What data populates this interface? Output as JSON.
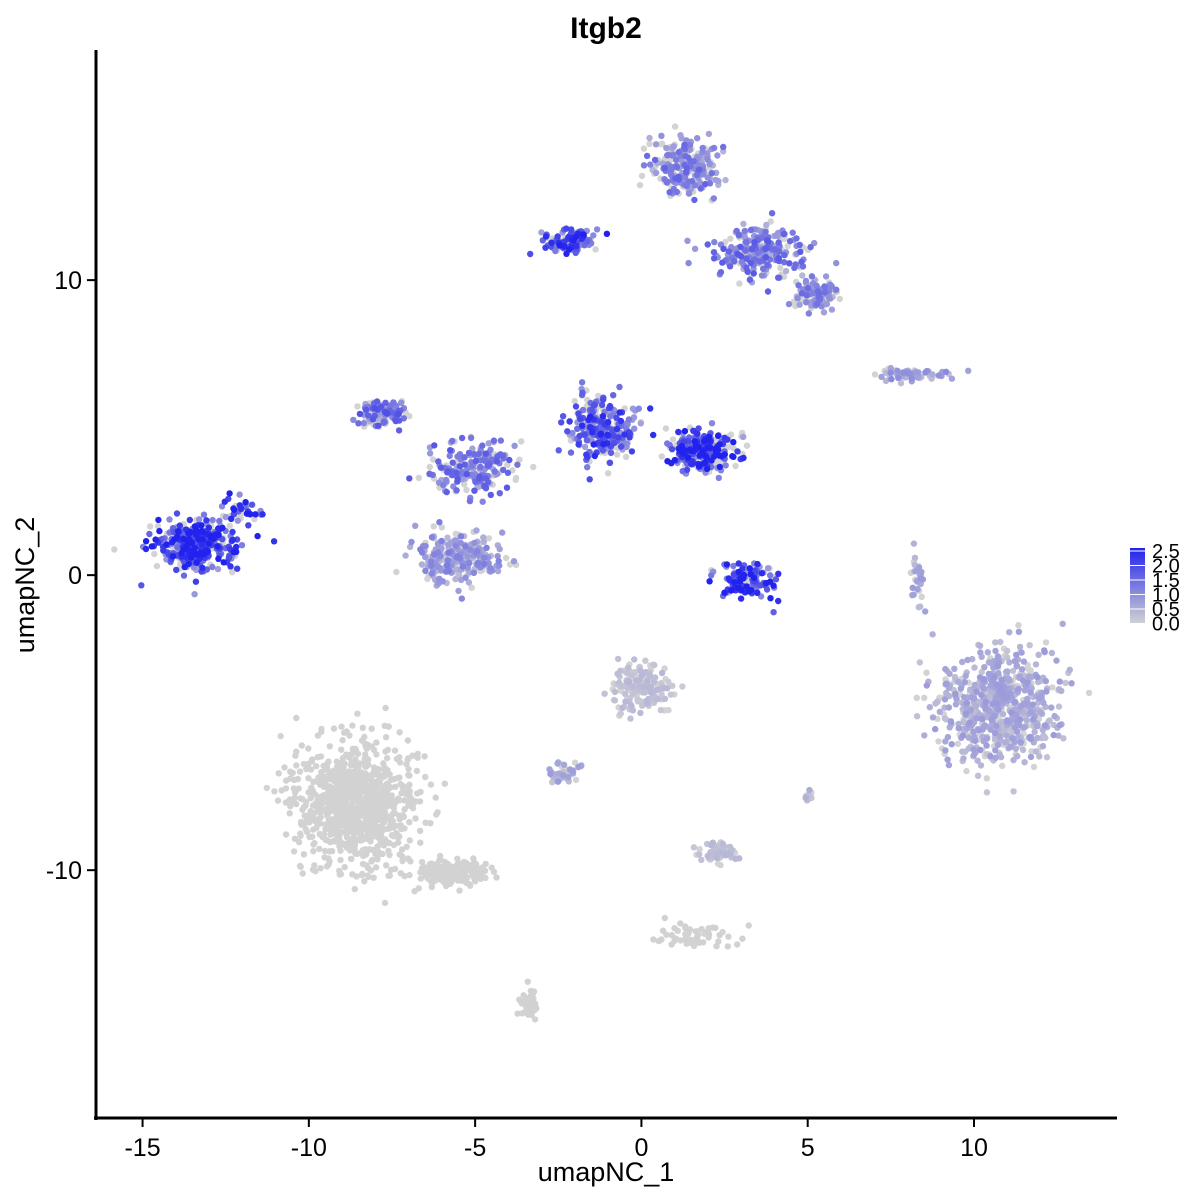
{
  "chart_data": {
    "type": "scatter",
    "title": "Itgb2",
    "xlabel": "umapNC_1",
    "ylabel": "umapNC_2",
    "xlim": [
      -16.4,
      14.3
    ],
    "ylim": [
      -18.4,
      17.8
    ],
    "xticks": [
      -15,
      -10,
      -5,
      0,
      5,
      10
    ],
    "yticks": [
      -10,
      0,
      10
    ],
    "grid": false,
    "colorscale": {
      "low_color": "#d3d3d3",
      "high_color": "#2222ee",
      "min": 0,
      "max": 2.5,
      "ticks": [
        "2.5",
        "2.0",
        "1.5",
        "1.0",
        "0.5",
        "0.0"
      ],
      "legend_placement": "right"
    },
    "clusters": [
      {
        "center": [
          -13.4,
          1.0
        ],
        "spread": [
          1.1,
          0.7
        ],
        "n": 420,
        "expr": 2.1
      },
      {
        "center": [
          -12.0,
          2.2
        ],
        "spread": [
          0.5,
          0.4
        ],
        "n": 40,
        "expr": 2.0
      },
      {
        "center": [
          -7.8,
          5.5
        ],
        "spread": [
          0.6,
          0.4
        ],
        "n": 120,
        "expr": 1.4
      },
      {
        "center": [
          -5.6,
          0.6
        ],
        "spread": [
          1.1,
          0.8
        ],
        "n": 260,
        "expr": 0.9
      },
      {
        "center": [
          -5.0,
          3.6
        ],
        "spread": [
          1.2,
          0.9
        ],
        "n": 200,
        "expr": 1.3
      },
      {
        "center": [
          -1.2,
          5.0
        ],
        "spread": [
          0.8,
          1.0
        ],
        "n": 260,
        "expr": 1.8
      },
      {
        "center": [
          1.8,
          4.2
        ],
        "spread": [
          1.0,
          0.6
        ],
        "n": 260,
        "expr": 2.1
      },
      {
        "center": [
          -2.2,
          11.3
        ],
        "spread": [
          0.7,
          0.4
        ],
        "n": 120,
        "expr": 1.9
      },
      {
        "center": [
          1.3,
          13.8
        ],
        "spread": [
          0.9,
          0.9
        ],
        "n": 240,
        "expr": 1.2
      },
      {
        "center": [
          3.6,
          11.0
        ],
        "spread": [
          1.2,
          0.8
        ],
        "n": 260,
        "expr": 1.3
      },
      {
        "center": [
          5.2,
          9.5
        ],
        "spread": [
          0.6,
          0.5
        ],
        "n": 90,
        "expr": 1.1
      },
      {
        "center": [
          3.2,
          -0.2
        ],
        "spread": [
          0.8,
          0.5
        ],
        "n": 130,
        "expr": 2.2
      },
      {
        "center": [
          8.2,
          6.8
        ],
        "spread": [
          1.0,
          0.2
        ],
        "n": 60,
        "expr": 0.8
      },
      {
        "center": [
          10.7,
          -4.4
        ],
        "spread": [
          1.6,
          1.7
        ],
        "n": 700,
        "expr": 0.6
      },
      {
        "center": [
          8.3,
          -0.3
        ],
        "spread": [
          0.2,
          0.9
        ],
        "n": 30,
        "expr": 0.6
      },
      {
        "center": [
          0.0,
          -3.8
        ],
        "spread": [
          0.8,
          0.8
        ],
        "n": 150,
        "expr": 0.3
      },
      {
        "center": [
          -2.3,
          -6.7
        ],
        "spread": [
          0.4,
          0.3
        ],
        "n": 40,
        "expr": 0.6
      },
      {
        "center": [
          -8.6,
          -7.8
        ],
        "spread": [
          1.6,
          1.8
        ],
        "n": 950,
        "expr": 0.01
      },
      {
        "center": [
          -5.8,
          -10.1
        ],
        "spread": [
          1.0,
          0.4
        ],
        "n": 180,
        "expr": 0.01
      },
      {
        "center": [
          -3.4,
          -14.5
        ],
        "spread": [
          0.3,
          0.5
        ],
        "n": 60,
        "expr": 0.02
      },
      {
        "center": [
          2.4,
          -9.4
        ],
        "spread": [
          0.5,
          0.3
        ],
        "n": 70,
        "expr": 0.3
      },
      {
        "center": [
          1.5,
          -12.2
        ],
        "spread": [
          1.0,
          0.4
        ],
        "n": 60,
        "expr": 0.02
      },
      {
        "center": [
          5.0,
          -7.4
        ],
        "spread": [
          0.15,
          0.2
        ],
        "n": 12,
        "expr": 0.4
      }
    ]
  }
}
